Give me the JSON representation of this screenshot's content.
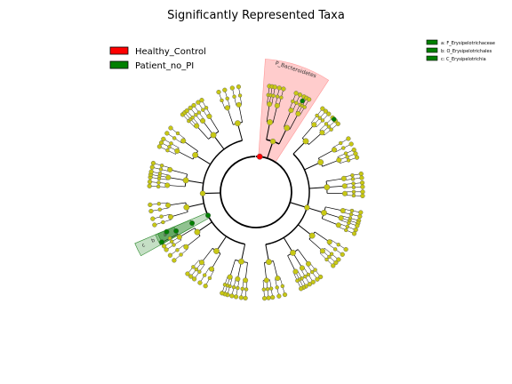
{
  "chart_data": {
    "type": "cladogram",
    "title": "Significantly Represented Taxa",
    "legend": [
      {
        "label": "Healthy_Control",
        "color": "#ff0000"
      },
      {
        "label": "Patient_no_PI",
        "color": "#008000"
      }
    ],
    "clade_key": [
      {
        "label": "a: F_Erysipelotrichaceae",
        "color": "#008000"
      },
      {
        "label": "b: O_Erysipelotrichales",
        "color": "#008000"
      },
      {
        "label": "c: C_Erysipelotrichia",
        "color": "#008000"
      }
    ],
    "highlighted_clades": [
      {
        "label": "P_Bacteroidetes",
        "group": "Healthy_Control",
        "color": "#ff9999"
      },
      {
        "label": "c",
        "group": "Patient_no_PI",
        "color": "#2e8b2e"
      },
      {
        "label": "b",
        "group": "Patient_no_PI",
        "color": "#2e8b2e"
      },
      {
        "label": "a",
        "group": "Patient_no_PI",
        "color": "#2e8b2e"
      }
    ],
    "node_color": "#c8c814",
    "enriched_node_colors": {
      "Healthy_Control": "#ff0000",
      "Patient_no_PI": "#008000"
    }
  }
}
